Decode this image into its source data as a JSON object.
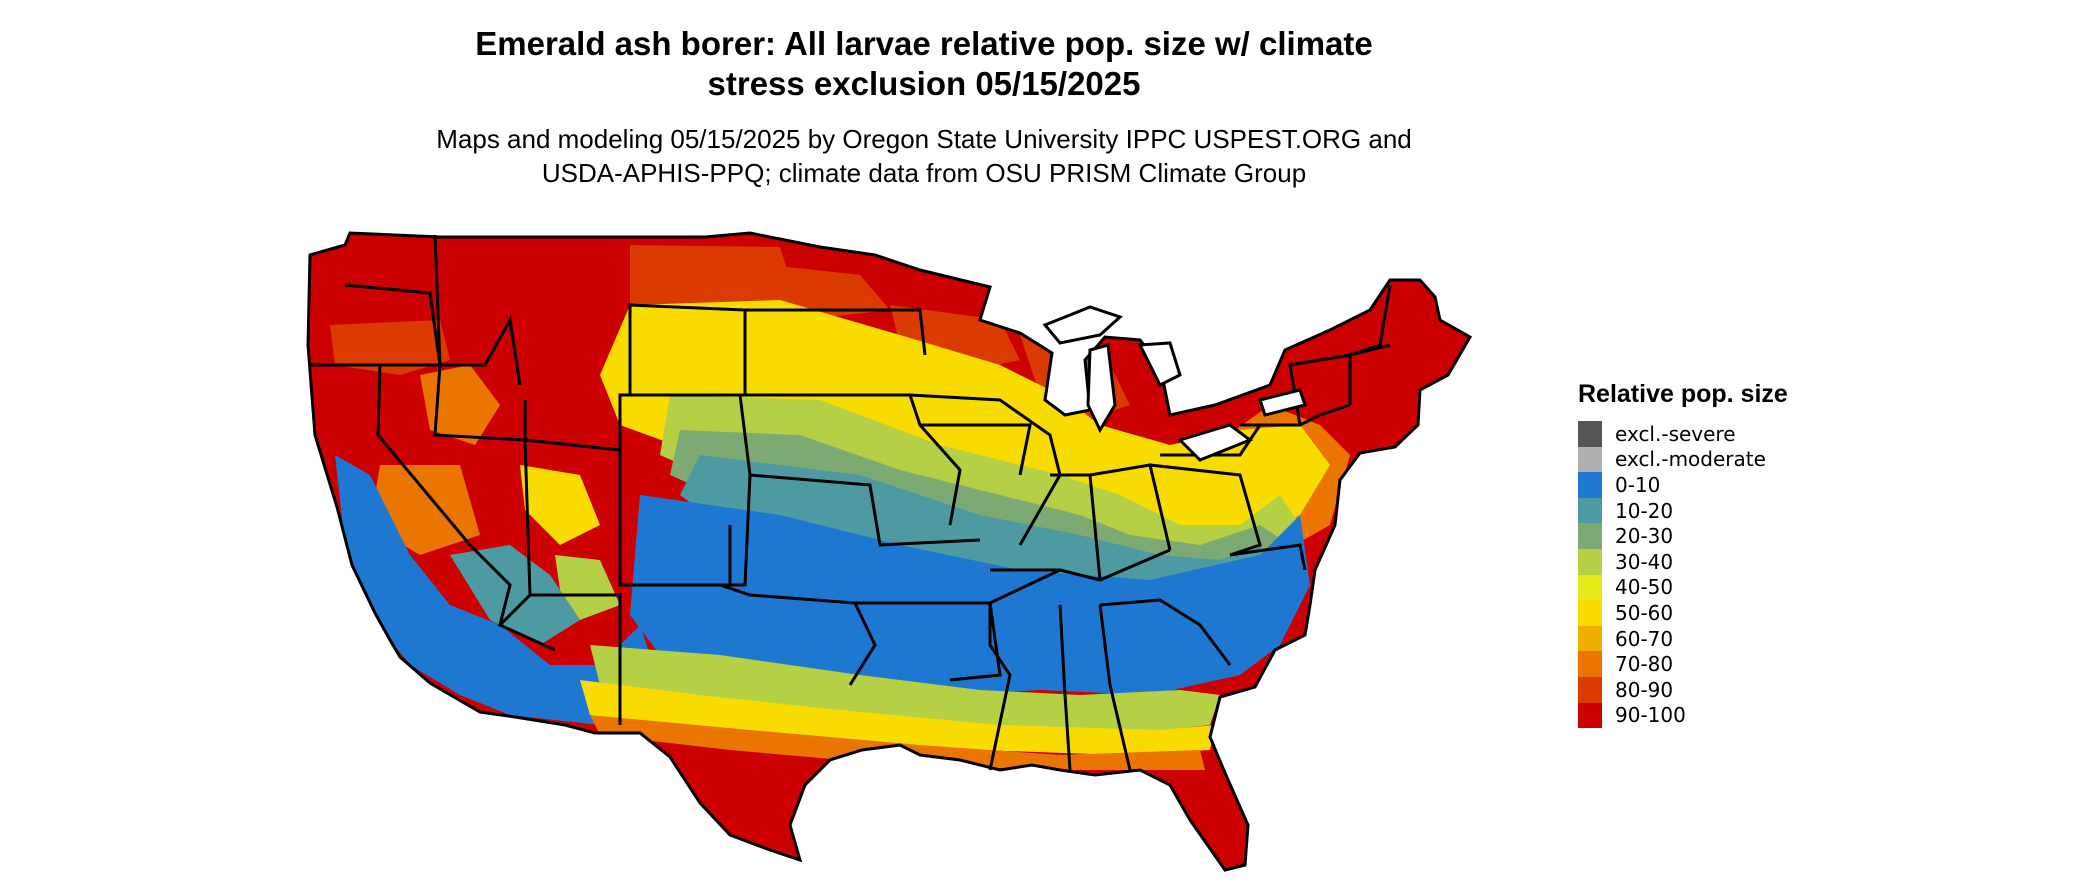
{
  "title": {
    "line1": "Emerald ash borer: All larvae relative pop. size w/ climate",
    "line2": "stress exclusion 05/15/2025"
  },
  "subtitle": {
    "line1": "Maps and modeling 05/15/2025 by Oregon State University IPPC USPEST.ORG and",
    "line2": "USDA-APHIS-PPQ; climate data from OSU PRISM Climate Group"
  },
  "legend": {
    "title": "Relative pop. size",
    "items": [
      {
        "label": "excl.-severe",
        "color": "#555555"
      },
      {
        "label": "excl.-moderate",
        "color": "#b0b0b0"
      },
      {
        "label": "0-10",
        "color": "#1e78d2"
      },
      {
        "label": "10-20",
        "color": "#4e9aa2"
      },
      {
        "label": "20-30",
        "color": "#7daa72"
      },
      {
        "label": "30-40",
        "color": "#b5d045"
      },
      {
        "label": "40-50",
        "color": "#e4ea18"
      },
      {
        "label": "50-60",
        "color": "#f8dc00"
      },
      {
        "label": "60-70",
        "color": "#f1ad00"
      },
      {
        "label": "70-80",
        "color": "#ea7500"
      },
      {
        "label": "80-90",
        "color": "#db3b00"
      },
      {
        "label": "90-100",
        "color": "#cc0000"
      }
    ]
  }
}
